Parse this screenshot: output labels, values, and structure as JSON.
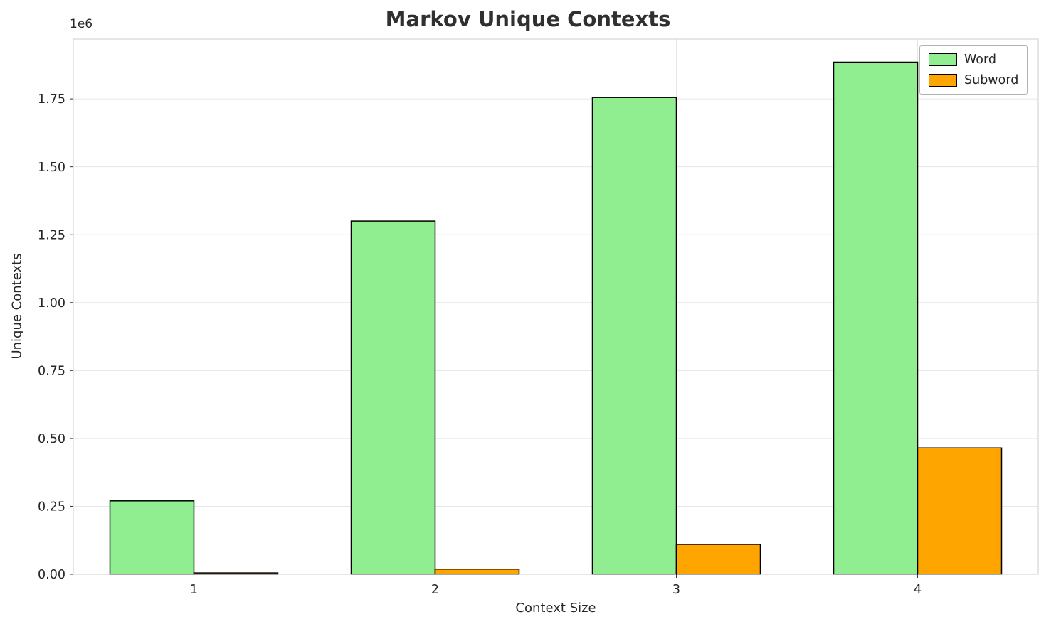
{
  "chart_data": {
    "type": "bar",
    "title": "Markov Unique Contexts",
    "xlabel": "Context Size",
    "ylabel": "Unique Contexts",
    "offset_text": "1e6",
    "categories": [
      "1",
      "2",
      "3",
      "4"
    ],
    "series": [
      {
        "name": "Word",
        "color": "#90ee90",
        "values": [
          270000,
          1300000,
          1755000,
          1885000
        ]
      },
      {
        "name": "Subword",
        "color": "#ffa500",
        "values": [
          5000,
          19000,
          110000,
          465000
        ]
      }
    ],
    "ylim": [
      0,
      1970000
    ],
    "yticks": [
      0,
      250000,
      500000,
      750000,
      1000000,
      1250000,
      1500000,
      1750000
    ],
    "ytick_labels": [
      "0.00",
      "0.25",
      "0.50",
      "0.75",
      "1.00",
      "1.25",
      "1.50",
      "1.75"
    ],
    "grid": true,
    "legend_position": "upper right",
    "bar_edge_color": "#000000",
    "grid_color": "#e6e6e6",
    "spine_color": "#cccccc",
    "tick_color": "#333333",
    "text_color": "#262626"
  }
}
